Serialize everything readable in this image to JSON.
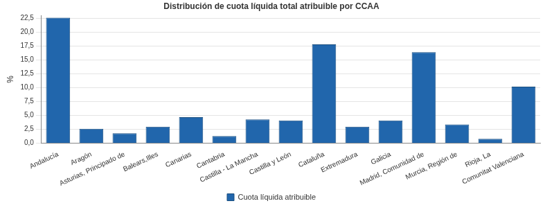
{
  "chart_data": {
    "type": "bar",
    "title": "Distribución de cuota líquida total atribuible por CCAA",
    "y_label": "%",
    "categories": [
      "Andalucía",
      "Aragón",
      "Asturias, Principado de",
      "Balears,Illes",
      "Canarias",
      "Cantabria",
      "Castilla - La Mancha",
      "Castilla y León",
      "Cataluña",
      "Extremadura",
      "Galicia",
      "Madrid, Comunidad de",
      "Murcia, Región de",
      "Rioja, La",
      "Comunitat Valenciana"
    ],
    "series": [
      {
        "name": "Cuota líquida atribuible",
        "color": "#2166ac",
        "values": [
          22.6,
          2.6,
          1.8,
          3.0,
          4.7,
          1.3,
          4.3,
          4.1,
          17.8,
          3.0,
          4.1,
          16.4,
          3.4,
          0.8,
          10.2
        ]
      }
    ],
    "ylim": [
      0,
      23
    ],
    "yticks": [
      {
        "value": 0,
        "label": "0,0"
      },
      {
        "value": 2.5,
        "label": "2,5"
      },
      {
        "value": 5,
        "label": "5,0"
      },
      {
        "value": 7.5,
        "label": "7,5"
      },
      {
        "value": 10,
        "label": "10,0"
      },
      {
        "value": 12.5,
        "label": "12,5"
      },
      {
        "value": 15,
        "label": "15,0"
      },
      {
        "value": 17.5,
        "label": "17,5"
      },
      {
        "value": 20,
        "label": "20,0"
      },
      {
        "value": 22.5,
        "label": "22,5"
      }
    ],
    "grid": true,
    "legend": "bottom"
  }
}
